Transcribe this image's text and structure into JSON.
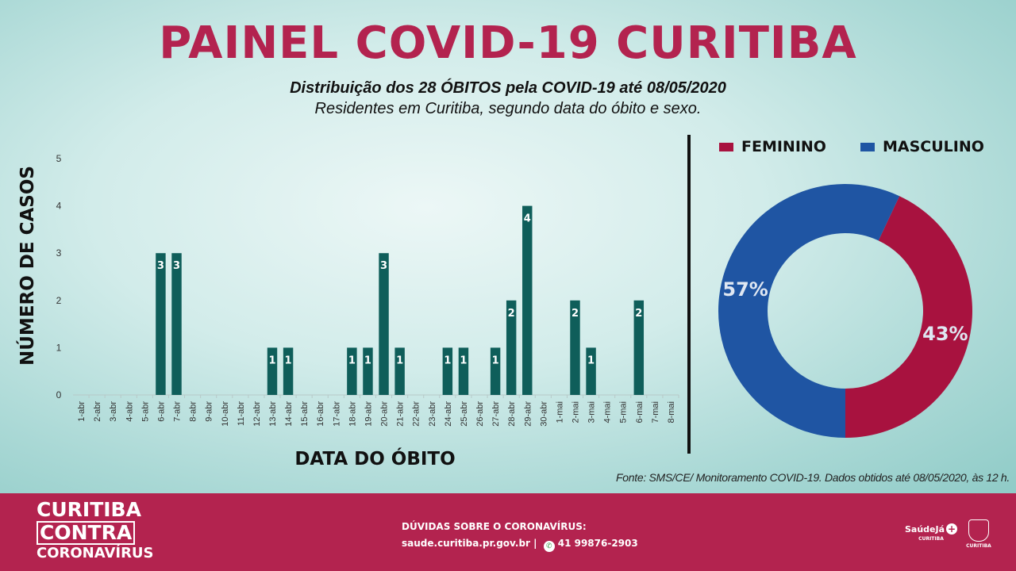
{
  "header": {
    "title": "PAINEL COVID-19 CURITIBA",
    "subtitle_line1": "Distribuição dos 28 ÓBITOS pela COVID-19 até 08/05/2020",
    "subtitle_line2": "Residentes em Curitiba, segundo data do óbito e sexo."
  },
  "legend": {
    "feminino": "FEMININO",
    "masculino": "MASCULINO"
  },
  "source": "Fonte: SMS/CE/ Monitoramento COVID-19. Dados obtidos até 08/05/2020, às 12 h.",
  "footer": {
    "brand_line1": "CURITIBA",
    "brand_line2": "CONTRA",
    "brand_line3": "CORONAVÍRUS",
    "contact_heading": "DÚVIDAS SOBRE O CORONAVÍRUS:",
    "contact_site": "saude.curitiba.pr.gov.br",
    "contact_sep": "|",
    "contact_phone": "41 99876-2903",
    "logo1_text": "SaúdeJá",
    "logo1_sub": "CURITIBA",
    "logo2_text": "CURITIBA"
  },
  "colors": {
    "title": "#b3234f",
    "bar": "#0f5e5a",
    "feminino": "#a8123f",
    "masculino": "#1f55a3",
    "footer": "#b3234f"
  },
  "chart_data": [
    {
      "type": "bar",
      "title": "",
      "xlabel": "DATA DO ÓBITO",
      "ylabel": "NÚMERO DE CASOS",
      "ylim": [
        0,
        5
      ],
      "yticks": [
        0,
        1,
        2,
        3,
        4,
        5
      ],
      "grid": false,
      "data_labels": true,
      "categories": [
        "1-abr",
        "2-abr",
        "3-abr",
        "4-abr",
        "5-abr",
        "6-abr",
        "7-abr",
        "8-abr",
        "9-abr",
        "10-abr",
        "11-abr",
        "12-abr",
        "13-abr",
        "14-abr",
        "15-abr",
        "16-abr",
        "17-abr",
        "18-abr",
        "19-abr",
        "20-abr",
        "21-abr",
        "22-abr",
        "23-abr",
        "24-abr",
        "25-abr",
        "26-abr",
        "27-abr",
        "28-abr",
        "29-abr",
        "30-abr",
        "1-mai",
        "2-mai",
        "3-mai",
        "4-mai",
        "5-mai",
        "6-mai",
        "7-mai",
        "8-mai"
      ],
      "values": [
        0,
        0,
        0,
        0,
        0,
        3,
        3,
        0,
        0,
        0,
        0,
        0,
        1,
        1,
        0,
        0,
        0,
        1,
        1,
        3,
        1,
        0,
        0,
        1,
        1,
        0,
        1,
        2,
        4,
        0,
        0,
        2,
        1,
        0,
        0,
        2,
        0,
        0
      ]
    },
    {
      "type": "pie",
      "title": "",
      "donut": true,
      "legend_position": "top",
      "labels": [
        "FEMININO",
        "MASCULINO"
      ],
      "values": [
        43,
        57
      ],
      "value_labels": [
        "43%",
        "57%"
      ]
    }
  ]
}
